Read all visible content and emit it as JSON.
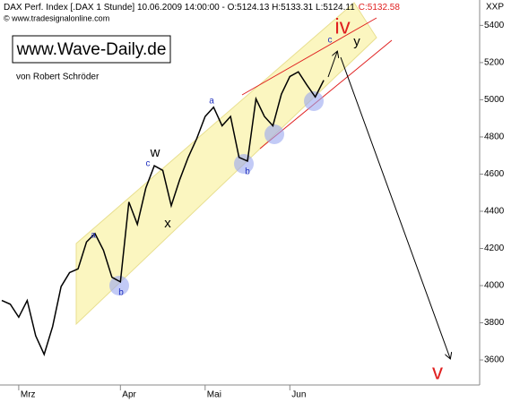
{
  "chart_data": {
    "type": "line",
    "title": "DAX Perf. Index [.DAX  1 Stunde] 10.06.2009 14:00:00 - O:5124.13 H:5133.31 L:5124.11",
    "close_label": "C:5132.58",
    "copyright": "© www.tradesignalonline.com",
    "brand": "www.Wave-Daily.de",
    "author": "von Robert Schröder",
    "y_axis_label": "XXP",
    "categories": [
      null,
      null,
      "Mrz",
      null,
      null,
      null,
      null,
      null,
      null,
      null,
      null,
      null,
      null,
      null,
      "Apr",
      null,
      null,
      null,
      null,
      null,
      null,
      null,
      null,
      null,
      "Mai",
      null,
      null,
      null,
      null,
      null,
      null,
      null,
      null,
      null,
      "Jun",
      null,
      null,
      null,
      null
    ],
    "series": [
      {
        "name": "DAX",
        "color": "#000000",
        "values": [
          3920,
          3900,
          3830,
          3920,
          3730,
          3630,
          3780,
          3995,
          4070,
          4090,
          4235,
          4280,
          4190,
          4045,
          4020,
          4450,
          4330,
          4525,
          4645,
          4620,
          4430,
          4570,
          4690,
          4790,
          4910,
          4960,
          4860,
          4910,
          4690,
          4670,
          5005,
          4910,
          4860,
          5030,
          5125,
          5150,
          5080,
          5015,
          5105
        ]
      }
    ],
    "ylim": [
      3475,
      5450
    ],
    "yticks": [
      3600,
      3800,
      4000,
      4200,
      4400,
      4600,
      4800,
      5000,
      5200,
      5400
    ],
    "annotations": [
      "a",
      "b",
      "c",
      "w",
      "x",
      "a",
      "b",
      "c",
      "y",
      "iv",
      "v"
    ]
  }
}
